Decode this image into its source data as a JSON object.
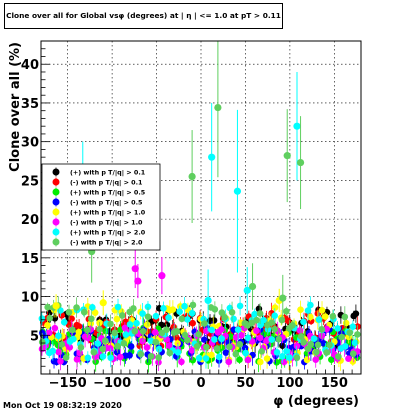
{
  "chart_data": {
    "type": "scatter",
    "title": "Clone  over all for Global vsφ (degrees) at | η | <= 1.0 at pT > 0.11",
    "xlabel": "φ (degrees)",
    "ylabel": "Clone  over all (%)",
    "xlim": [
      -180,
      180
    ],
    "ylim": [
      0,
      43
    ],
    "xticks": [
      -150,
      -100,
      -50,
      0,
      50,
      100,
      150
    ],
    "yticks": [
      5,
      10,
      15,
      20,
      25,
      30,
      35,
      40
    ],
    "grid": true,
    "legend_position": "left, upper-middle",
    "series": [
      {
        "name": "(+) with p T/|q| > 0.1",
        "color": "#000000",
        "band": [
          3.5,
          8.5
        ],
        "highlights": []
      },
      {
        "name": "(-) with p T/|q| > 0.1",
        "color": "#ff0000",
        "band": [
          3.5,
          8
        ],
        "highlights": []
      },
      {
        "name": "(+) with p T/|q| > 0.5",
        "color": "#00ee00",
        "band": [
          1.5,
          6
        ],
        "highlights": []
      },
      {
        "name": "(-) with p T/|q| > 0.5",
        "color": "#0000ff",
        "band": [
          1.5,
          6
        ],
        "highlights": []
      },
      {
        "name": "(+) with p T/|q| > 1.0",
        "color": "#ffff00",
        "band": [
          1.5,
          9
        ],
        "highlights": [
          {
            "x": -163,
            "y": 8.8,
            "err": 1.5
          },
          {
            "x": -110,
            "y": 9.2,
            "err": 1.6
          },
          {
            "x": 88,
            "y": 9.5,
            "err": 1.5
          }
        ]
      },
      {
        "name": "(-) with p T/|q| > 1.0",
        "color": "#ff00ff",
        "band": [
          1.5,
          6
        ],
        "highlights": [
          {
            "x": -74,
            "y": 13.6,
            "err": 2.5
          },
          {
            "x": -71,
            "y": 12.0,
            "err": 2.2
          },
          {
            "x": -44,
            "y": 12.7,
            "err": 2.4
          }
        ]
      },
      {
        "name": "(+) with p T/|q| > 2.0",
        "color": "#00ffff",
        "band": [
          2,
          9
        ],
        "highlights": [
          {
            "x": -133,
            "y": 23.0,
            "err": 7
          },
          {
            "x": 12,
            "y": 28.0,
            "err": 7
          },
          {
            "x": 41,
            "y": 23.6,
            "err": 10.5
          },
          {
            "x": 108,
            "y": 32.0,
            "err": 7
          },
          {
            "x": 8,
            "y": 9.5,
            "err": 4
          },
          {
            "x": 52,
            "y": 10.8,
            "err": 3
          }
        ]
      },
      {
        "name": "(-) with p T/|q| > 2.0",
        "color": "#5fcf5f",
        "band": [
          2,
          9
        ],
        "highlights": [
          {
            "x": -123,
            "y": 15.8,
            "err": 4
          },
          {
            "x": -10,
            "y": 25.5,
            "err": 6
          },
          {
            "x": 19,
            "y": 34.4,
            "err": 9
          },
          {
            "x": 97,
            "y": 28.2,
            "err": 6
          },
          {
            "x": 112,
            "y": 27.3,
            "err": 6
          },
          {
            "x": 58,
            "y": 11.3,
            "err": 3
          },
          {
            "x": 92,
            "y": 9.8,
            "err": 3
          }
        ]
      }
    ]
  },
  "footer": "Mon Oct 19 08:32:19 2020"
}
